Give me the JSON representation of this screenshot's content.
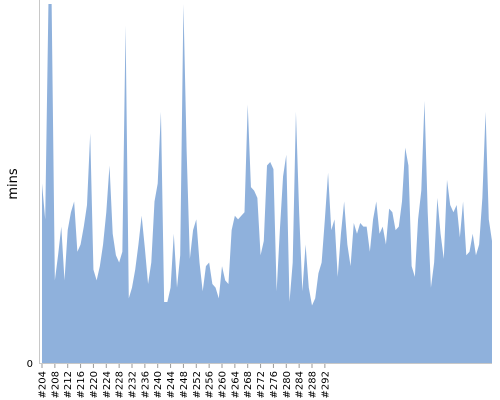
{
  "chart_data": {
    "type": "area",
    "ylabel": "mins",
    "xlabel": "",
    "title": "",
    "grid": false,
    "legend": "none",
    "y_tick_labels": [
      "0"
    ],
    "ylim": [
      0,
      100
    ],
    "x_tick_labels": [
      "#204",
      "#208",
      "#212",
      "#216",
      "#220",
      "#224",
      "#228",
      "#232",
      "#236",
      "#240",
      "#244",
      "#248",
      "#252",
      "#256",
      "#260",
      "#264",
      "#268",
      "#272",
      "#276",
      "#280",
      "#284",
      "#288",
      "#292"
    ],
    "x_start": 204,
    "values": [
      50,
      40,
      100,
      100,
      23,
      30,
      38,
      23,
      37,
      42,
      45,
      31,
      33,
      38,
      44,
      64,
      26,
      23,
      27,
      33,
      42,
      55,
      36,
      30,
      28,
      31,
      94,
      18,
      21,
      26,
      33,
      41,
      32,
      22,
      28,
      45,
      50,
      70,
      17,
      17,
      21,
      36,
      21,
      30,
      100,
      59,
      29,
      37,
      40,
      28,
      20,
      27,
      28,
      22,
      21,
      18,
      27,
      23,
      22,
      37,
      41,
      40,
      41,
      42,
      72,
      49,
      48,
      46,
      30,
      34,
      55,
      56,
      54,
      20,
      37,
      52,
      58,
      17,
      28,
      70,
      42,
      20,
      33,
      21,
      16,
      18,
      25,
      28,
      40,
      53,
      37,
      40,
      24,
      36,
      45,
      33,
      27,
      39,
      36,
      39,
      38,
      38,
      31,
      40,
      45,
      36,
      38,
      33,
      43,
      42,
      37,
      38,
      45,
      60,
      55,
      27,
      24,
      40,
      48,
      73,
      42,
      21,
      28,
      46,
      36,
      29,
      51,
      44,
      42,
      44,
      35,
      45,
      30,
      31,
      36,
      30,
      33,
      46,
      70,
      40,
      34
    ],
    "color": "#8fb1dc"
  }
}
